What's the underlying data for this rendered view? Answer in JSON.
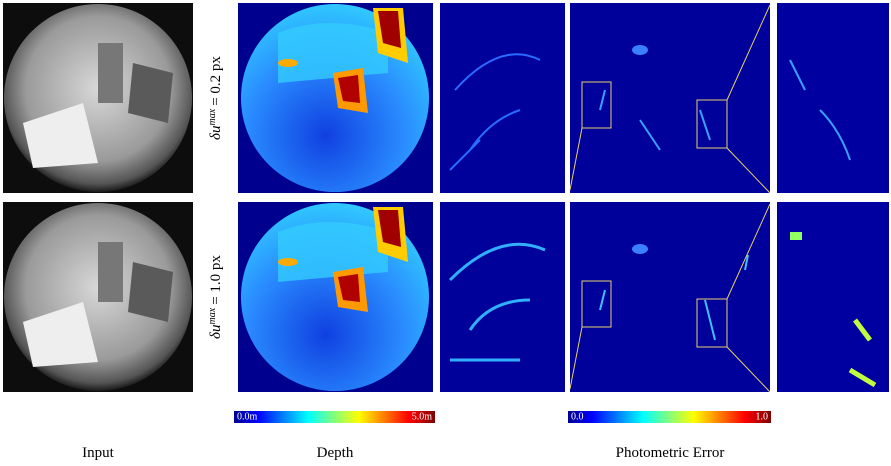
{
  "figure": {
    "rows": [
      {
        "symbol": "δu",
        "superscript": "max",
        "rest": "= 0.2 px"
      },
      {
        "symbol": "δu",
        "superscript": "max",
        "rest": "= 1.0 px"
      }
    ],
    "depth_colorbar": {
      "min": "0.0m",
      "max": "5.0m"
    },
    "error_colorbar": {
      "min": "0.0",
      "max": "1.0"
    },
    "captions": [
      "Input",
      "Depth",
      "Photometric Error"
    ]
  }
}
